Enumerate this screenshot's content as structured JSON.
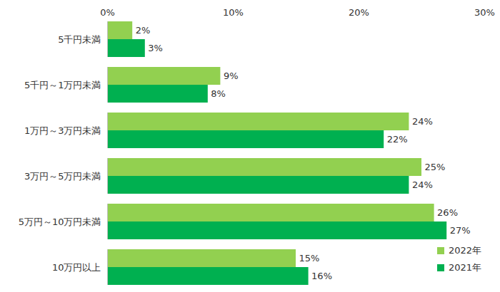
{
  "chart_data": {
    "type": "bar",
    "orientation": "horizontal",
    "categories": [
      "5千円未満",
      "5千円～1万円未満",
      "1万円～3万円未満",
      "3万円～5万円未満",
      "5万円～10万円未満",
      "10万円以上"
    ],
    "series": [
      {
        "name": "2022年",
        "color": "#92d050",
        "values": [
          2,
          9,
          24,
          25,
          26,
          15
        ],
        "value_labels": [
          "2%",
          "9%",
          "24%",
          "25%",
          "26%",
          "15%"
        ]
      },
      {
        "name": "2021年",
        "color": "#00b050",
        "values": [
          3,
          8,
          22,
          24,
          27,
          16
        ],
        "value_labels": [
          "3%",
          "8%",
          "22%",
          "24%",
          "27%",
          "16%"
        ]
      }
    ],
    "xlim": [
      0,
      30
    ],
    "xticks": [
      {
        "value": 0,
        "label": "0%"
      },
      {
        "value": 10,
        "label": "10%"
      },
      {
        "value": 20,
        "label": "20%"
      },
      {
        "value": 30,
        "label": "30%"
      }
    ],
    "grid": false,
    "data_labels": true,
    "legend": "lower right"
  }
}
